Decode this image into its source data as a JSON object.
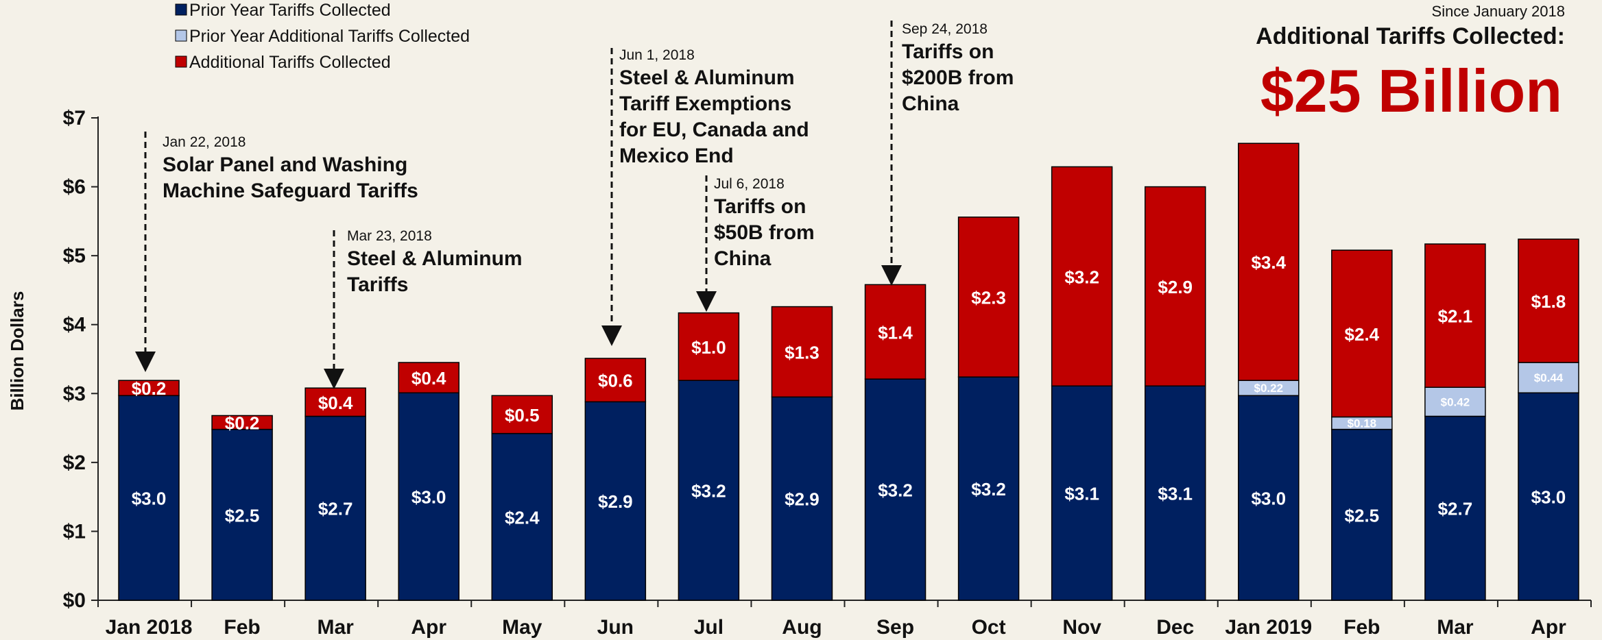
{
  "legend": [
    {
      "label": "Prior Year Tariffs Collected",
      "color": "#002060"
    },
    {
      "label": "Prior Year Additional Tariffs Collected",
      "color": "#b4c7e7"
    },
    {
      "label": "Additional Tariffs Collected",
      "color": "#c00000"
    }
  ],
  "summary": {
    "since": "Since January 2018",
    "heading": "Additional Tariffs Collected:",
    "amount": "$25 Billion"
  },
  "annotations": [
    {
      "date": "Jan 22, 2018",
      "lines": [
        "Solar Panel and Washing",
        "Machine Safeguard Tariffs"
      ]
    },
    {
      "date": "Mar 23, 2018",
      "lines": [
        "Steel & Aluminum",
        "Tariffs"
      ]
    },
    {
      "date": "Jun 1, 2018",
      "lines": [
        "Steel & Aluminum",
        "Tariff Exemptions",
        "for EU, Canada and",
        "Mexico End"
      ]
    },
    {
      "date": "Jul 6, 2018",
      "lines": [
        "Tariffs on",
        "$50B from",
        "China"
      ]
    },
    {
      "date": "Sep 24, 2018",
      "lines": [
        "Tariffs on",
        "$200B from",
        "China"
      ]
    }
  ],
  "chart_data": {
    "type": "bar",
    "stacked": true,
    "ylabel": "Billion Dollars",
    "ylim": [
      0,
      7
    ],
    "yticks": [
      "$0",
      "$1",
      "$2",
      "$3",
      "$4",
      "$5",
      "$6",
      "$7"
    ],
    "categories": [
      "Jan 2018",
      "Feb",
      "Mar",
      "Apr",
      "May",
      "Jun",
      "Jul",
      "Aug",
      "Sep",
      "Oct",
      "Nov",
      "Dec",
      "Jan 2019",
      "Feb",
      "Mar",
      "Apr"
    ],
    "series": [
      {
        "name": "Prior Year Tariffs Collected",
        "color": "#002060",
        "values": [
          2.97,
          2.48,
          2.67,
          3.01,
          2.42,
          2.88,
          3.19,
          2.95,
          3.21,
          3.24,
          3.11,
          3.11,
          2.97,
          2.48,
          2.67,
          3.01
        ],
        "labels": [
          "$3.0",
          "$2.5",
          "$2.7",
          "$3.0",
          "$2.4",
          "$2.9",
          "$3.2",
          "$2.9",
          "$3.2",
          "$3.2",
          "$3.1",
          "$3.1",
          "$3.0",
          "$2.5",
          "$2.7",
          "$3.0"
        ]
      },
      {
        "name": "Prior Year Additional Tariffs Collected",
        "color": "#b4c7e7",
        "values": [
          0,
          0,
          0,
          0,
          0,
          0,
          0,
          0,
          0,
          0,
          0,
          0,
          0.22,
          0.18,
          0.42,
          0.44
        ],
        "labels": [
          "",
          "",
          "",
          "",
          "",
          "",
          "",
          "",
          "",
          "",
          "",
          "",
          "$0.22",
          "$0.18",
          "$0.42",
          "$0.44"
        ]
      },
      {
        "name": "Additional Tariffs Collected",
        "color": "#c00000",
        "values": [
          0.22,
          0.2,
          0.41,
          0.44,
          0.55,
          0.63,
          0.98,
          1.31,
          1.37,
          2.32,
          3.18,
          2.89,
          3.44,
          2.42,
          2.08,
          1.79
        ],
        "labels": [
          "$0.2",
          "$0.2",
          "$0.4",
          "$0.4",
          "$0.5",
          "$0.6",
          "$1.0",
          "$1.3",
          "$1.4",
          "$2.3",
          "$3.2",
          "$2.9",
          "$3.4",
          "$2.4",
          "$2.1",
          "$1.8"
        ]
      }
    ]
  }
}
